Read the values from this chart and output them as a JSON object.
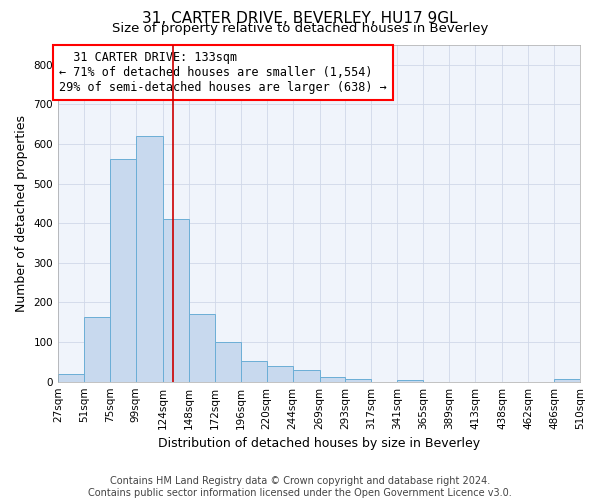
{
  "title": "31, CARTER DRIVE, BEVERLEY, HU17 9GL",
  "subtitle": "Size of property relative to detached houses in Beverley",
  "xlabel": "Distribution of detached houses by size in Beverley",
  "ylabel": "Number of detached properties",
  "bin_labels": [
    "27sqm",
    "51sqm",
    "75sqm",
    "99sqm",
    "124sqm",
    "148sqm",
    "172sqm",
    "196sqm",
    "220sqm",
    "244sqm",
    "269sqm",
    "293sqm",
    "317sqm",
    "341sqm",
    "365sqm",
    "389sqm",
    "413sqm",
    "438sqm",
    "462sqm",
    "486sqm",
    "510sqm"
  ],
  "bin_edges": [
    27,
    51,
    75,
    99,
    124,
    148,
    172,
    196,
    220,
    244,
    269,
    293,
    317,
    341,
    365,
    389,
    413,
    438,
    462,
    486,
    510
  ],
  "bar_heights": [
    20,
    163,
    563,
    621,
    411,
    170,
    101,
    53,
    40,
    30,
    12,
    8,
    0,
    5,
    0,
    0,
    0,
    0,
    0,
    8
  ],
  "bar_color": "#c8d9ee",
  "bar_edge_color": "#6baed6",
  "property_line_x": 133,
  "annotation_text": "  31 CARTER DRIVE: 133sqm\n← 71% of detached houses are smaller (1,554)\n29% of semi-detached houses are larger (638) →",
  "annotation_box_color": "white",
  "annotation_box_edge": "red",
  "vline_color": "#cc0000",
  "ylim": [
    0,
    850
  ],
  "yticks": [
    0,
    100,
    200,
    300,
    400,
    500,
    600,
    700,
    800
  ],
  "grid_color": "#d0d8e8",
  "footer_text": "Contains HM Land Registry data © Crown copyright and database right 2024.\nContains public sector information licensed under the Open Government Licence v3.0.",
  "title_fontsize": 11,
  "subtitle_fontsize": 9.5,
  "ylabel_fontsize": 9,
  "xlabel_fontsize": 9,
  "tick_fontsize": 7.5,
  "annotation_fontsize": 8.5,
  "footer_fontsize": 7
}
